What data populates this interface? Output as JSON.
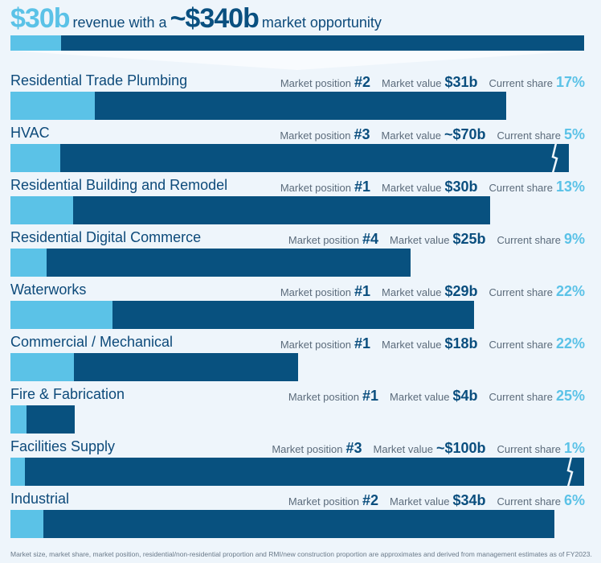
{
  "headline": {
    "revenue": "$30b",
    "mid_text": "revenue with a",
    "market": "~$340b",
    "end_text": "market opportunity"
  },
  "colors": {
    "dark": "#08517f",
    "light": "#5bc2e7",
    "title": "#0d4a7a"
  },
  "labels": {
    "position": "Market position",
    "value": "Market value",
    "share": "Current share"
  },
  "chart_data": {
    "type": "bar",
    "title": "$30b revenue with a ~$340b market opportunity",
    "total": {
      "revenue_b": 30,
      "market_b": 340
    },
    "segments": [
      {
        "name": "Residential Trade Plumbing",
        "position": "#2",
        "value": "$31b",
        "value_b": 31,
        "share": "17%",
        "share_pct": 17,
        "truncated": false
      },
      {
        "name": "HVAC",
        "position": "#3",
        "value": "~$70b",
        "value_b": 70,
        "share": "5%",
        "share_pct": 5,
        "truncated": true
      },
      {
        "name": "Residential Building and Remodel",
        "position": "#1",
        "value": "$30b",
        "value_b": 30,
        "share": "13%",
        "share_pct": 13,
        "truncated": false
      },
      {
        "name": "Residential Digital Commerce",
        "position": "#4",
        "value": "$25b",
        "value_b": 25,
        "share": "9%",
        "share_pct": 9,
        "truncated": false
      },
      {
        "name": "Waterworks",
        "position": "#1",
        "value": "$29b",
        "value_b": 29,
        "share": "22%",
        "share_pct": 22,
        "truncated": false
      },
      {
        "name": "Commercial / Mechanical",
        "position": "#1",
        "value": "$18b",
        "value_b": 18,
        "share": "22%",
        "share_pct": 22,
        "truncated": false
      },
      {
        "name": "Fire & Fabrication",
        "position": "#1",
        "value": "$4b",
        "value_b": 4,
        "share": "25%",
        "share_pct": 25,
        "truncated": false
      },
      {
        "name": "Facilities Supply",
        "position": "#3",
        "value": "~$100b",
        "value_b": 100,
        "share": "1%",
        "share_pct": 1,
        "truncated": true
      },
      {
        "name": "Industrial",
        "position": "#2",
        "value": "$34b",
        "value_b": 34,
        "share": "6%",
        "share_pct": 6,
        "truncated": false
      }
    ]
  },
  "footnote": "Market size, market share, market position, residential/non-residential proportion and RMI/new construction proportion are approximates and derived from management estimates as of FY2023."
}
